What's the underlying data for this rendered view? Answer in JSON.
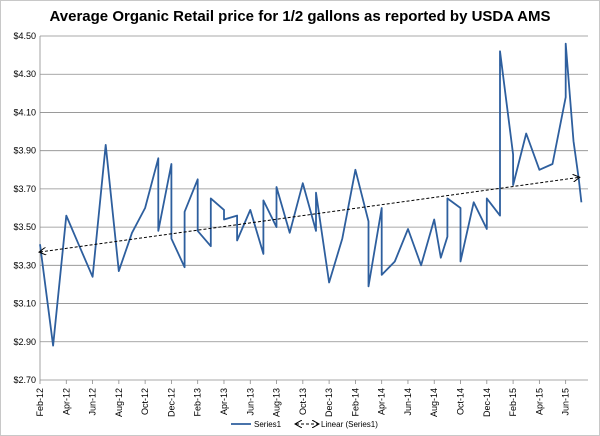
{
  "chart_data": {
    "type": "line",
    "title": "Average Organic Retail price for 1/2 gallons as reported by USDA AMS",
    "xlabel": "",
    "ylabel": "",
    "ylim": [
      2.7,
      4.5
    ],
    "yticks": [
      "$2.70",
      "$2.90",
      "$3.10",
      "$3.30",
      "$3.50",
      "$3.70",
      "$3.90",
      "$4.10",
      "$4.30",
      "$4.50"
    ],
    "xtick_labels": [
      "Feb-12",
      "Apr-12",
      "Jun-12",
      "Aug-12",
      "Oct-12",
      "Dec-12",
      "Feb-13",
      "Apr-13",
      "Jun-13",
      "Aug-13",
      "Oct-13",
      "Dec-13",
      "Feb-14",
      "Apr-14",
      "Jun-14",
      "Aug-14",
      "Oct-14",
      "Dec-14",
      "Feb-15",
      "Apr-15",
      "Jun-15"
    ],
    "x_range": [
      0,
      41.7
    ],
    "grid": true,
    "legend_position": "bottom",
    "series": [
      {
        "name": "Series1",
        "color": "#2e5f9e",
        "points": [
          [
            0,
            3.41
          ],
          [
            1,
            2.88
          ],
          [
            2,
            3.56
          ],
          [
            3,
            3.4
          ],
          [
            4,
            3.24
          ],
          [
            5,
            3.93
          ],
          [
            6,
            3.27
          ],
          [
            7,
            3.47
          ],
          [
            8,
            3.6
          ],
          [
            9,
            3.86
          ],
          [
            9,
            3.48
          ],
          [
            10,
            3.83
          ],
          [
            10,
            3.44
          ],
          [
            11,
            3.29
          ],
          [
            11,
            3.58
          ],
          [
            12,
            3.75
          ],
          [
            12,
            3.48
          ],
          [
            13,
            3.4
          ],
          [
            13,
            3.65
          ],
          [
            14,
            3.59
          ],
          [
            14,
            3.54
          ],
          [
            15,
            3.56
          ],
          [
            15,
            3.43
          ],
          [
            16,
            3.59
          ],
          [
            17,
            3.36
          ],
          [
            17,
            3.64
          ],
          [
            18,
            3.5
          ],
          [
            18,
            3.71
          ],
          [
            19,
            3.47
          ],
          [
            20,
            3.73
          ],
          [
            21,
            3.48
          ],
          [
            21,
            3.68
          ],
          [
            22,
            3.21
          ],
          [
            23,
            3.44
          ],
          [
            24,
            3.8
          ],
          [
            25,
            3.53
          ],
          [
            25,
            3.19
          ],
          [
            26,
            3.6
          ],
          [
            26,
            3.25
          ],
          [
            27,
            3.32
          ],
          [
            28,
            3.49
          ],
          [
            29,
            3.3
          ],
          [
            30,
            3.54
          ],
          [
            30.5,
            3.34
          ],
          [
            31,
            3.45
          ],
          [
            31,
            3.65
          ],
          [
            32,
            3.6
          ],
          [
            32,
            3.32
          ],
          [
            33,
            3.63
          ],
          [
            34,
            3.49
          ],
          [
            34,
            3.65
          ],
          [
            35,
            3.56
          ],
          [
            35,
            4.42
          ],
          [
            36,
            3.88
          ],
          [
            36,
            3.72
          ],
          [
            37,
            3.99
          ],
          [
            38,
            3.8
          ],
          [
            39,
            3.83
          ],
          [
            40,
            4.18
          ],
          [
            40,
            4.46
          ],
          [
            40.6,
            3.95
          ],
          [
            41,
            3.75
          ],
          [
            41.2,
            3.63
          ]
        ]
      },
      {
        "name": "Linear (Series1)",
        "color": "#000000",
        "style": "dashed",
        "points": [
          [
            0,
            3.37
          ],
          [
            41,
            3.76
          ]
        ]
      }
    ]
  }
}
